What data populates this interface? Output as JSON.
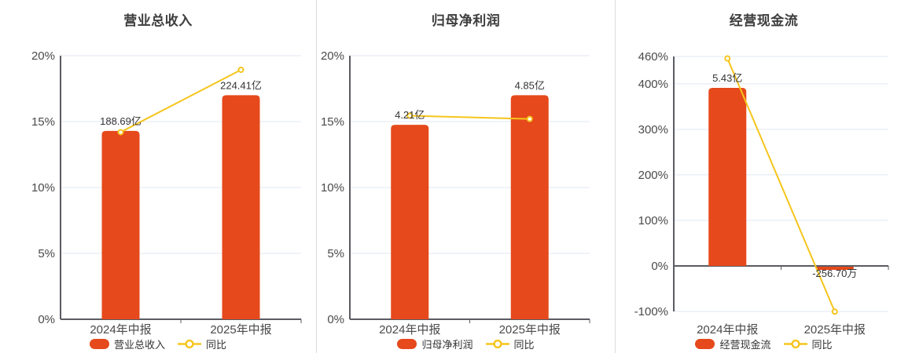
{
  "colors": {
    "bar": "#E6491B",
    "line": "#F5C51D",
    "grid": "#E2E7F3",
    "axis": "#5A5B63",
    "tick_text": "#4A4A4A",
    "label_text": "#333333",
    "title_text": "#3D3D3D",
    "divider": "#DCDCDC",
    "marker_fill": "#FFFFFF"
  },
  "chart_data": [
    {
      "type": "bar-line",
      "title": "营业总收入",
      "categories": [
        "2024年中报",
        "2025年中报"
      ],
      "bar_series": "营业总收入",
      "line_series": "同比",
      "bars": {
        "unit": "亿",
        "values": [
          188.69,
          224.41
        ],
        "labels": [
          "188.69亿",
          "224.41亿"
        ]
      },
      "line": {
        "values_pct": [
          14.2,
          18.93
        ]
      },
      "y_axis": {
        "min": 0,
        "max": 20,
        "ticks": [
          {
            "v": 20,
            "label": "20%"
          },
          {
            "v": 15,
            "label": "15%"
          },
          {
            "v": 10,
            "label": "10%"
          },
          {
            "v": 5,
            "label": "5%"
          },
          {
            "v": 0,
            "label": "0%"
          }
        ]
      }
    },
    {
      "type": "bar-line",
      "title": "归母净利润",
      "categories": [
        "2024年中报",
        "2025年中报"
      ],
      "bar_series": "归母净利润",
      "line_series": "同比",
      "bars": {
        "unit": "亿",
        "values": [
          4.21,
          4.85
        ],
        "labels": [
          "4.21亿",
          "4.85亿"
        ]
      },
      "line": {
        "values_pct": [
          15.45,
          15.2
        ]
      },
      "y_axis": {
        "min": 0,
        "max": 20,
        "ticks": [
          {
            "v": 20,
            "label": "20%"
          },
          {
            "v": 15,
            "label": "15%"
          },
          {
            "v": 10,
            "label": "10%"
          },
          {
            "v": 5,
            "label": "5%"
          },
          {
            "v": 0,
            "label": "0%"
          }
        ]
      }
    },
    {
      "type": "bar-line",
      "title": "经营现金流",
      "categories": [
        "2024年中报",
        "2025年中报"
      ],
      "bar_series": "经营现金流",
      "line_series": "同比",
      "bars": {
        "unit": "亿",
        "values": [
          5.43,
          -0.02567
        ],
        "labels": [
          "5.43亿",
          "-256.70万"
        ]
      },
      "line": {
        "values_pct": [
          455.66,
          -100.47
        ]
      },
      "y_axis": {
        "min": -100,
        "max": 460,
        "ticks": [
          {
            "v": 460,
            "label": "460%"
          },
          {
            "v": 400,
            "label": "400%"
          },
          {
            "v": 300,
            "label": "300%"
          },
          {
            "v": 200,
            "label": "200%"
          },
          {
            "v": 100,
            "label": "100%"
          },
          {
            "v": 0,
            "label": "0%"
          },
          {
            "v": -100,
            "label": "-100%"
          }
        ]
      }
    }
  ]
}
